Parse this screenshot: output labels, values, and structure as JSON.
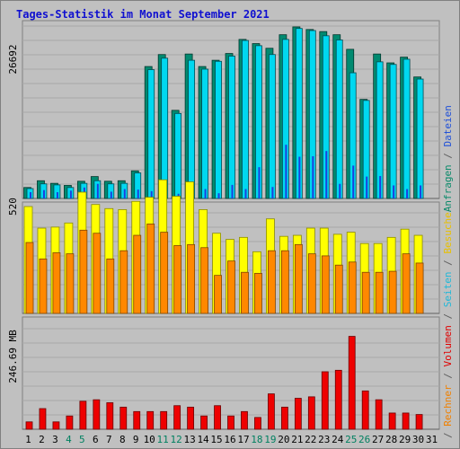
{
  "title": "Tages-Statistik im Monat September 2021",
  "y_labels": {
    "top": "26692",
    "middle": "520",
    "bottom": "246.69 MB"
  },
  "right_labels": {
    "top": [
      {
        "text": "Anfragen",
        "color": "#0a8a6a"
      },
      {
        "text": " / ",
        "color": "#606060"
      },
      {
        "text": "Dateien",
        "color": "#2050d8"
      }
    ],
    "middle": [
      {
        "text": " / ",
        "color": "#606060"
      },
      {
        "text": "Seiten",
        "color": "#20b8d8"
      },
      {
        "text": " / ",
        "color": "#606060"
      },
      {
        "text": "Besuche",
        "color": "#e8c000"
      }
    ],
    "bottom": [
      {
        "text": " / ",
        "color": "#606060"
      },
      {
        "text": "Rechner",
        "color": "#f08000"
      },
      {
        "text": " / ",
        "color": "#606060"
      },
      {
        "text": "Volumen",
        "color": "#e00000"
      }
    ]
  },
  "chart_data": {
    "type": "bar",
    "title": "Tages-Statistik im Monat September 2021",
    "categories": [
      "1",
      "2",
      "3",
      "4",
      "5",
      "6",
      "7",
      "8",
      "9",
      "10",
      "11",
      "12",
      "13",
      "14",
      "15",
      "16",
      "17",
      "18",
      "19",
      "20",
      "21",
      "22",
      "23",
      "24",
      "25",
      "26",
      "27",
      "28",
      "29",
      "30",
      "31"
    ],
    "weekend_days": [
      "4",
      "5",
      "11",
      "12",
      "18",
      "19",
      "25",
      "26"
    ],
    "colors": {
      "anfragen": "#008a70",
      "dateien": "#1a40e0",
      "seiten": "#00d8f0",
      "besuche": "#ffff00",
      "rechner": "#ff8800",
      "volumen": "#ee0000",
      "weekend_tick": "#008060",
      "tick": "#000000"
    },
    "panels": [
      {
        "name": "requests",
        "ymax": 26692,
        "series": [
          {
            "name": "Anfragen",
            "values": [
              2100,
              3400,
              2900,
              2500,
              3300,
              4200,
              3300,
              3400,
              5300,
              25300,
              27600,
              16900,
              27700,
              25300,
              26500,
              27800,
              30500,
              29700,
              28800,
              31400,
              32900,
              32400,
              32000,
              31400,
              28600,
              19000,
              27700,
              26000,
              27100,
              23300,
              null
            ]
          },
          {
            "name": "Seiten",
            "values": [
              1900,
              2800,
              2600,
              2100,
              2900,
              3400,
              2800,
              2900,
              4900,
              24700,
              26900,
              16300,
              26500,
              24800,
              26300,
              27300,
              30300,
              29300,
              27600,
              30500,
              32600,
              32200,
              31200,
              30400,
              24100,
              18800,
              26200,
              25700,
              26700,
              22900,
              null
            ]
          },
          {
            "name": "Dateien",
            "values": [
              1200,
              1600,
              1200,
              1500,
              2100,
              2800,
              1300,
              1800,
              1700,
              1400,
              1500,
              900,
              2400,
              1800,
              1000,
              2600,
              1800,
              6000,
              2200,
              10300,
              8000,
              8100,
              9100,
              2800,
              6300,
              4200,
              4300,
              2500,
              1800,
              2500,
              null
            ]
          }
        ]
      },
      {
        "name": "visits",
        "ymax": 520,
        "series": [
          {
            "name": "Besuche",
            "values": [
              520,
              415,
              420,
              440,
              590,
              530,
              510,
              505,
              545,
              565,
              650,
              570,
              640,
              505,
              390,
              360,
              370,
              300,
              460,
              375,
              380,
              415,
              415,
              385,
              395,
              340,
              340,
              370,
              410,
              380,
              null
            ]
          },
          {
            "name": "Rechner",
            "values": [
              345,
              265,
              295,
              290,
              405,
              390,
              265,
              305,
              380,
              435,
              395,
              330,
              335,
              320,
              185,
              255,
              200,
              195,
              305,
              305,
              335,
              290,
              280,
              235,
              250,
              200,
              200,
              205,
              290,
              245,
              null
            ]
          }
        ]
      },
      {
        "name": "volume",
        "ymax": 246.69,
        "series": [
          {
            "name": "Volumen",
            "values": [
              25,
              70,
              25,
              45,
              95,
              100,
              90,
              75,
              60,
              60,
              60,
              80,
              75,
              45,
              80,
              45,
              60,
              40,
              120,
              75,
              105,
              110,
              195,
              200,
              315,
              130,
              100,
              55,
              55,
              50,
              null
            ]
          }
        ]
      }
    ]
  }
}
